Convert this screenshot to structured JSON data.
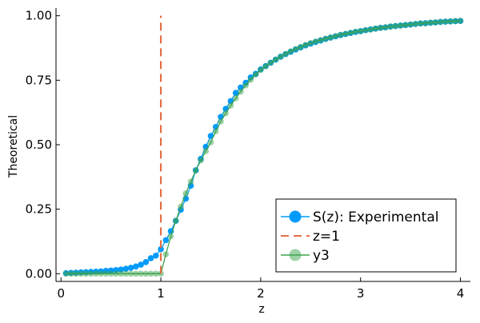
{
  "chart_data": {
    "type": "scatter",
    "title": "",
    "xlabel": "z",
    "ylabel": "Theoretical",
    "xlim": [
      -0.05,
      4.1
    ],
    "ylim": [
      -0.03,
      1.03
    ],
    "xticks": [
      0,
      1,
      2,
      3,
      4
    ],
    "xtick_labels": [
      "0",
      "1",
      "2",
      "3",
      "4"
    ],
    "yticks": [
      0.0,
      0.25,
      0.5,
      0.75,
      1.0
    ],
    "ytick_labels": [
      "0.00",
      "0.25",
      "0.50",
      "0.75",
      "1.00"
    ],
    "grid": false,
    "legend_position": "bottom-right",
    "series": [
      {
        "name": "S(z): Experimental",
        "style": "line+markers",
        "color": "#009AF9",
        "x": [
          0.05,
          0.1,
          0.15,
          0.2,
          0.25,
          0.3,
          0.35,
          0.4,
          0.45,
          0.5,
          0.55,
          0.6,
          0.65,
          0.7,
          0.75,
          0.8,
          0.85,
          0.9,
          0.95,
          1.0,
          1.05,
          1.1,
          1.15,
          1.2,
          1.25,
          1.3,
          1.35,
          1.4,
          1.45,
          1.5,
          1.55,
          1.6,
          1.65,
          1.7,
          1.75,
          1.8,
          1.85,
          1.9,
          1.95,
          2.0,
          2.05,
          2.1,
          2.15,
          2.2,
          2.25,
          2.3,
          2.35,
          2.4,
          2.45,
          2.5,
          2.55,
          2.6,
          2.65,
          2.7,
          2.75,
          2.8,
          2.85,
          2.9,
          2.95,
          3.0,
          3.05,
          3.1,
          3.15,
          3.2,
          3.25,
          3.3,
          3.35,
          3.4,
          3.45,
          3.5,
          3.55,
          3.6,
          3.65,
          3.7,
          3.75,
          3.8,
          3.85,
          3.9,
          3.95,
          4.0
        ],
        "y": [
          0.002,
          0.003,
          0.004,
          0.005,
          0.006,
          0.007,
          0.008,
          0.009,
          0.011,
          0.012,
          0.014,
          0.016,
          0.019,
          0.023,
          0.028,
          0.035,
          0.045,
          0.06,
          0.07,
          0.095,
          0.13,
          0.165,
          0.205,
          0.248,
          0.291,
          0.341,
          0.401,
          0.445,
          0.492,
          0.534,
          0.569,
          0.608,
          0.639,
          0.669,
          0.701,
          0.722,
          0.74,
          0.761,
          0.775,
          0.792,
          0.805,
          0.818,
          0.83,
          0.841,
          0.851,
          0.86,
          0.869,
          0.877,
          0.885,
          0.892,
          0.898,
          0.904,
          0.91,
          0.915,
          0.92,
          0.925,
          0.929,
          0.933,
          0.937,
          0.94,
          0.944,
          0.947,
          0.95,
          0.953,
          0.955,
          0.958,
          0.96,
          0.962,
          0.964,
          0.966,
          0.968,
          0.97,
          0.971,
          0.973,
          0.974,
          0.976,
          0.977,
          0.978,
          0.979,
          0.98
        ]
      },
      {
        "name": "z=1",
        "style": "dashed-line",
        "color": "#E26F46",
        "x": [
          1.0,
          1.0
        ],
        "y": [
          0.0,
          1.0
        ]
      },
      {
        "name": "y3",
        "style": "line+markers",
        "color": "#3DA44D",
        "x": [
          0.05,
          0.1,
          0.15,
          0.2,
          0.25,
          0.3,
          0.35,
          0.4,
          0.45,
          0.5,
          0.55,
          0.6,
          0.65,
          0.7,
          0.75,
          0.8,
          0.85,
          0.9,
          0.95,
          1.0,
          1.05,
          1.1,
          1.15,
          1.2,
          1.25,
          1.3,
          1.35,
          1.4,
          1.45,
          1.5,
          1.55,
          1.6,
          1.65,
          1.7,
          1.75,
          1.8,
          1.85,
          1.9,
          1.95,
          2.0,
          2.05,
          2.1,
          2.15,
          2.2,
          2.25,
          2.3,
          2.35,
          2.4,
          2.45,
          2.5,
          2.55,
          2.6,
          2.65,
          2.7,
          2.75,
          2.8,
          2.85,
          2.9,
          2.95,
          3.0,
          3.05,
          3.1,
          3.15,
          3.2,
          3.25,
          3.3,
          3.35,
          3.4,
          3.45,
          3.5,
          3.55,
          3.6,
          3.65,
          3.7,
          3.75,
          3.8,
          3.85,
          3.9,
          3.95,
          4.0
        ],
        "y": [
          0.0,
          0.0,
          0.0,
          0.0,
          0.0,
          0.0,
          0.0,
          0.0,
          0.0,
          0.0,
          0.0,
          0.0,
          0.0,
          0.0,
          0.0,
          0.0,
          0.0,
          0.0,
          0.0,
          0.0,
          0.075,
          0.145,
          0.205,
          0.26,
          0.311,
          0.357,
          0.4,
          0.439,
          0.475,
          0.509,
          0.552,
          0.59,
          0.622,
          0.652,
          0.68,
          0.706,
          0.73,
          0.752,
          0.772,
          0.79,
          0.804,
          0.818,
          0.83,
          0.841,
          0.852,
          0.862,
          0.871,
          0.879,
          0.887,
          0.894,
          0.9,
          0.906,
          0.911,
          0.916,
          0.921,
          0.926,
          0.93,
          0.934,
          0.938,
          0.941,
          0.944,
          0.947,
          0.95,
          0.953,
          0.955,
          0.958,
          0.96,
          0.962,
          0.964,
          0.966,
          0.968,
          0.97,
          0.971,
          0.973,
          0.974,
          0.976,
          0.977,
          0.978,
          0.979,
          0.98
        ]
      }
    ]
  }
}
